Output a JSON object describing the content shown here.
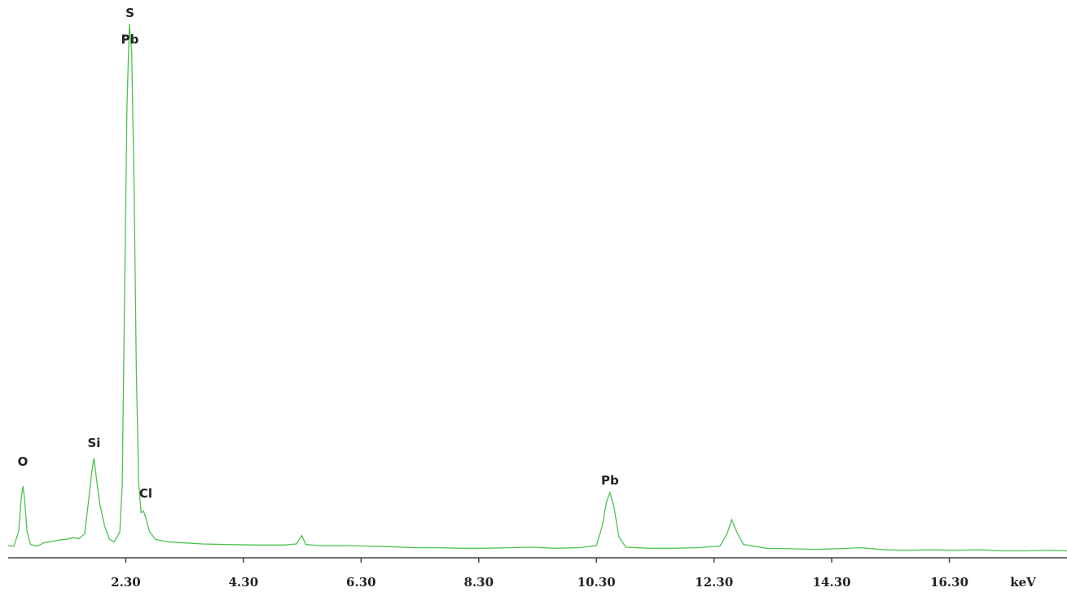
{
  "chart_data": {
    "type": "line",
    "x_label": "keV",
    "color": "#4cc34c",
    "x": [
      0.3,
      0.4,
      0.48,
      0.52,
      0.55,
      0.58,
      0.62,
      0.68,
      0.8,
      0.9,
      1.0,
      1.1,
      1.2,
      1.3,
      1.4,
      1.5,
      1.6,
      1.66,
      1.72,
      1.76,
      1.8,
      1.86,
      1.94,
      2.02,
      2.1,
      2.16,
      2.2,
      2.24,
      2.28,
      2.32,
      2.36,
      2.4,
      2.44,
      2.48,
      2.52,
      2.56,
      2.6,
      2.64,
      2.7,
      2.8,
      3.0,
      3.3,
      3.6,
      4.0,
      4.5,
      5.0,
      5.2,
      5.29,
      5.36,
      5.6,
      6.0,
      6.4,
      6.8,
      7.2,
      7.6,
      8.0,
      8.4,
      8.8,
      9.2,
      9.6,
      10.0,
      10.3,
      10.4,
      10.47,
      10.53,
      10.6,
      10.68,
      10.8,
      11.2,
      11.6,
      12.0,
      12.4,
      12.52,
      12.6,
      12.68,
      12.8,
      13.2,
      13.6,
      14.0,
      14.4,
      14.8,
      15.2,
      15.6,
      16.0,
      16.4,
      16.8,
      17.2,
      17.6,
      18.0,
      18.3
    ],
    "values": [
      2.3,
      2.2,
      5,
      11,
      13.5,
      11,
      5,
      2.5,
      2.2,
      2.8,
      3.0,
      3.2,
      3.4,
      3.5,
      3.8,
      3.6,
      4.5,
      10,
      16,
      18.8,
      15,
      10,
      6,
      3.5,
      3,
      4,
      5,
      14,
      50,
      85,
      100.5,
      95,
      70,
      35,
      14,
      8.5,
      8.8,
      7.5,
      5,
      3.5,
      3.0,
      2.8,
      2.6,
      2.5,
      2.4,
      2.4,
      2.6,
      4.2,
      2.5,
      2.3,
      2.3,
      2.2,
      2.1,
      1.9,
      1.9,
      1.8,
      1.8,
      1.9,
      2.0,
      1.8,
      1.9,
      2.3,
      6,
      10.5,
      12.3,
      9.5,
      4,
      2.0,
      1.8,
      1.8,
      1.9,
      2.2,
      4.5,
      7.2,
      5,
      2.5,
      1.8,
      1.7,
      1.6,
      1.7,
      1.9,
      1.5,
      1.4,
      1.5,
      1.4,
      1.5,
      1.3,
      1.3,
      1.4,
      1.3
    ],
    "xlim": [
      0.3,
      18.3
    ],
    "ylim": [
      0,
      105
    ],
    "xticks": [
      {
        "value": 2.3,
        "label": "2.30"
      },
      {
        "value": 4.3,
        "label": "4.30"
      },
      {
        "value": 6.3,
        "label": "6.30"
      },
      {
        "value": 8.3,
        "label": "8.30"
      },
      {
        "value": 10.3,
        "label": "10.30"
      },
      {
        "value": 12.3,
        "label": "12.30"
      },
      {
        "value": 14.3,
        "label": "14.30"
      },
      {
        "value": 16.3,
        "label": "16.30"
      }
    ],
    "annotations": [
      {
        "text": "O",
        "x": 0.55,
        "y": 18
      },
      {
        "text": "Si",
        "x": 1.76,
        "y": 21.5
      },
      {
        "text": "S",
        "x": 2.37,
        "y": 102.5
      },
      {
        "text": "Pb",
        "x": 2.37,
        "y": 97.5
      },
      {
        "text": "Cl",
        "x": 2.64,
        "y": 12
      },
      {
        "text": "Pb",
        "x": 10.53,
        "y": 14.5
      }
    ]
  }
}
